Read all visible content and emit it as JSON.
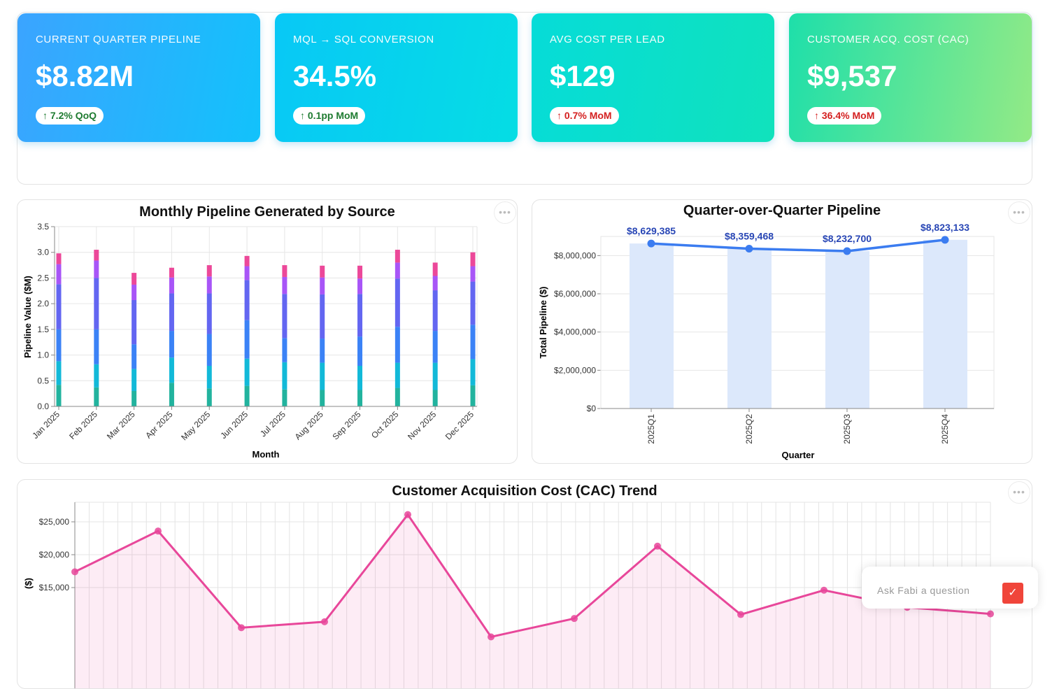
{
  "kpis": [
    {
      "title": "CURRENT QUARTER PIPELINE",
      "value": "$8.82M",
      "badge": "↑ 7.2% QoQ",
      "badge_tone": "positive"
    },
    {
      "title": "MQL → SQL CONVERSION",
      "value": "34.5%",
      "badge": "↑ 0.1pp MoM",
      "badge_tone": "positive"
    },
    {
      "title": "AVG COST PER LEAD",
      "value": "$129",
      "badge": "↑ 0.7% MoM",
      "badge_tone": "negative"
    },
    {
      "title": "CUSTOMER ACQ. COST (CAC)",
      "value": "$9,537",
      "badge": "↑ 36.4% MoM",
      "badge_tone": "negative"
    }
  ],
  "colors": {
    "positive": "#1e7b30",
    "negative": "#d42020",
    "line_blue": "#3b7cf0",
    "bar_light": "#dce8fb",
    "label_blue": "#2846b5",
    "cac_pink": "#e8479a"
  },
  "menu_label": "•••",
  "chat": {
    "placeholder": "Ask Fabi a question",
    "send_icon": "send-icon"
  },
  "chart_data": [
    {
      "type": "bar",
      "stacked": true,
      "title": "Monthly Pipeline Generated by Source",
      "xlabel": "Month",
      "ylabel": "Pipeline Value ($M)",
      "ylim": [
        0,
        3.5
      ],
      "yticks": [
        "0.0",
        "0.5",
        "1.0",
        "1.5",
        "2.0",
        "2.5",
        "3.0",
        "3.5"
      ],
      "grid": true,
      "categories": [
        "Jan 2025",
        "Feb 2025",
        "Mar 2025",
        "Apr 2025",
        "May 2025",
        "Jun 2025",
        "Jul 2025",
        "Aug 2025",
        "Sep 2025",
        "Oct 2025",
        "Nov 2025",
        "Dec 2025"
      ],
      "series": [
        {
          "color": "#22b39e",
          "values": [
            0.42,
            0.37,
            0.3,
            0.46,
            0.35,
            0.4,
            0.33,
            0.32,
            0.32,
            0.36,
            0.32,
            0.41
          ]
        },
        {
          "color": "#12b9d8",
          "values": [
            0.46,
            0.45,
            0.43,
            0.49,
            0.44,
            0.53,
            0.53,
            0.53,
            0.47,
            0.49,
            0.53,
            0.51
          ]
        },
        {
          "color": "#3b82f6",
          "values": [
            0.62,
            0.68,
            0.48,
            0.52,
            0.62,
            0.75,
            0.47,
            0.47,
            0.57,
            0.7,
            0.62,
            0.67
          ]
        },
        {
          "color": "#6366f1",
          "values": [
            0.88,
            1.0,
            0.86,
            0.73,
            0.79,
            0.78,
            0.86,
            0.86,
            0.83,
            0.94,
            0.79,
            0.84
          ]
        },
        {
          "color": "#a855f7",
          "values": [
            0.39,
            0.34,
            0.3,
            0.31,
            0.33,
            0.27,
            0.33,
            0.33,
            0.3,
            0.31,
            0.28,
            0.3
          ]
        },
        {
          "color": "#ec4899",
          "values": [
            0.21,
            0.21,
            0.23,
            0.19,
            0.22,
            0.2,
            0.23,
            0.23,
            0.25,
            0.25,
            0.26,
            0.27
          ]
        }
      ]
    },
    {
      "type": "bar+line",
      "title": "Quarter-over-Quarter Pipeline",
      "xlabel": "Quarter",
      "ylabel": "Total Pipeline ($)",
      "ylim": [
        0,
        9000000
      ],
      "yticks": [
        "$0",
        "$2,000,000",
        "$4,000,000",
        "$6,000,000",
        "$8,000,000"
      ],
      "grid": true,
      "categories": [
        "2025Q1",
        "2025Q2",
        "2025Q3",
        "2025Q4"
      ],
      "values": [
        8629385,
        8359468,
        8232700,
        8823133
      ],
      "data_labels": [
        "$8,629,385",
        "$8,359,468",
        "$8,232,700",
        "$8,823,133"
      ]
    },
    {
      "type": "area",
      "title": "Customer Acquisition Cost (CAC) Trend",
      "ylabel": "($)",
      "ylim": [
        0,
        28000
      ],
      "yticks": [
        "$15,000",
        "$20,000",
        "$25,000"
      ],
      "grid": true,
      "values": [
        17400,
        23600,
        8900,
        9800,
        26100,
        7500,
        10300,
        21300,
        10900,
        14600,
        12000,
        11000
      ]
    }
  ]
}
